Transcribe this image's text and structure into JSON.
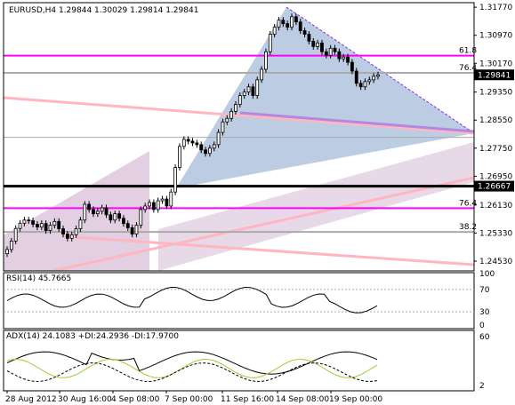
{
  "header": "EURUSD,H4  1.29844 1.30029 1.29814 1.29841",
  "colors": {
    "up": "#000000",
    "fib": "#ff00ff",
    "gray": "#aaaaaa",
    "triangle": "#b0c4de",
    "band": "#d8bfd8",
    "pink": "#ffb6c1",
    "violet": "#b388e0",
    "line_black": "#000000",
    "adx_plus": "#9acd32",
    "dashed": "#000000"
  },
  "chart_data": [
    {
      "type": "candlestick",
      "title": "EURUSD,H4",
      "ohlc_header": [
        1.29844,
        1.30029,
        1.29814,
        1.29841
      ],
      "ylim": [
        1.2425,
        1.319
      ],
      "y_ticks": [
        1.3177,
        1.3097,
        1.3017,
        1.2935,
        1.2855,
        1.2775,
        1.2695,
        1.2613,
        1.2533,
        1.2453
      ],
      "price_tags": [
        1.29841,
        1.26667
      ],
      "x_ticks": [
        "28 Aug 2012",
        "30 Aug 16:00",
        "4 Sep 08:00",
        "7 Sep 00:00",
        "11 Sep 16:00",
        "14 Sep 08:00",
        "19 Sep 00:00"
      ],
      "fib_levels": [
        {
          "label": "61.8",
          "value": 1.3039,
          "color": "fib"
        },
        {
          "label": "76.4",
          "value": 1.299,
          "color": "gray"
        },
        {
          "label": "76.4",
          "value": 1.2604,
          "color": "fib"
        },
        {
          "label": "38.2",
          "value": 1.2536,
          "color": "gray"
        }
      ],
      "horizontal_lines": [
        {
          "value": 1.2806,
          "color": "gray"
        },
        {
          "value": 1.26667,
          "color": "line_black"
        }
      ],
      "closes": [
        1.2486,
        1.251,
        1.2546,
        1.2561,
        1.257,
        1.2568,
        1.2558,
        1.255,
        1.256,
        1.254,
        1.2555,
        1.2566,
        1.2545,
        1.253,
        1.2518,
        1.2528,
        1.2545,
        1.257,
        1.2615,
        1.26,
        1.2588,
        1.2595,
        1.2605,
        1.2585,
        1.257,
        1.2588,
        1.2575,
        1.256,
        1.2548,
        1.253,
        1.2555,
        1.26,
        1.261,
        1.262,
        1.26,
        1.2625,
        1.263,
        1.261,
        1.265,
        1.272,
        1.278,
        1.28,
        1.2795,
        1.279,
        1.2785,
        1.277,
        1.276,
        1.2775,
        1.2785,
        1.282,
        1.285,
        1.286,
        1.288,
        1.29,
        1.2925,
        1.2935,
        1.295,
        1.2925,
        1.297,
        1.3,
        1.305,
        1.31,
        1.312,
        1.314,
        1.313,
        1.312,
        1.315,
        1.3135,
        1.311,
        1.31,
        1.308,
        1.3065,
        1.3075,
        1.305,
        1.304,
        1.306,
        1.305,
        1.303,
        1.3035,
        1.302,
        1.2995,
        1.296,
        1.295,
        1.2965,
        1.297,
        1.298,
        1.2984
      ]
    },
    {
      "type": "line",
      "title": "RSI(14) 45.7665",
      "ylim": [
        0,
        100
      ],
      "y_ticks": [
        100,
        70,
        30,
        0
      ],
      "levels": [
        70,
        30
      ],
      "series": [
        {
          "name": "RSI(14)",
          "value": 45.7665
        }
      ]
    },
    {
      "type": "line",
      "title": "ADX(14) 24.1083 +DI:24.2936 -DI:17.9700",
      "y_ticks": [
        60,
        2
      ],
      "series": [
        {
          "name": "ADX(14)",
          "value": 24.1083
        },
        {
          "name": "+DI",
          "value": 24.2936
        },
        {
          "name": "-DI",
          "value": 17.97
        }
      ]
    }
  ]
}
